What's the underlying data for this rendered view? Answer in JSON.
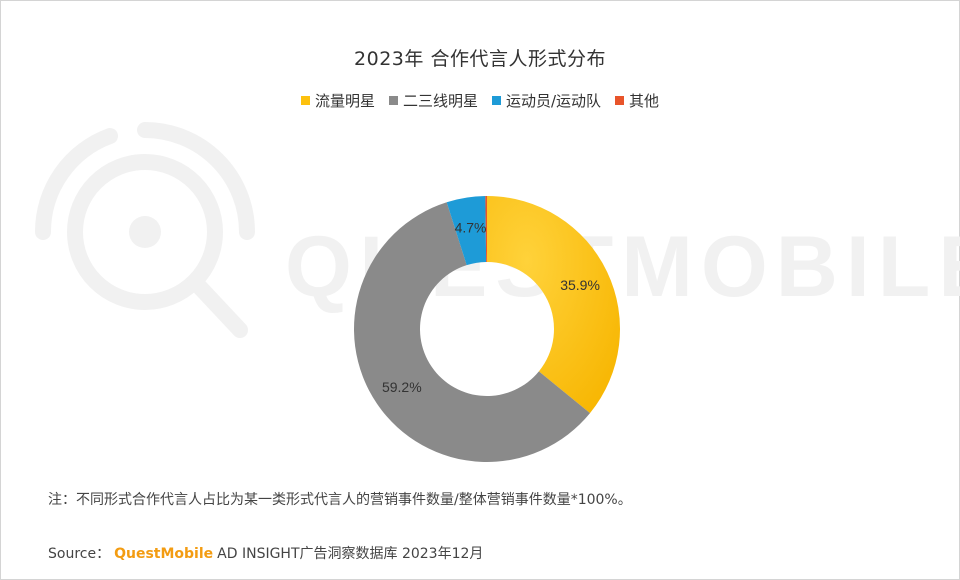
{
  "chart_data": {
    "type": "pie",
    "variant": "donut",
    "title": "2023年 合作代言人形式分布",
    "categories": [
      "流量明星",
      "二三线明星",
      "运动员/运动队",
      "其他"
    ],
    "values": [
      35.9,
      59.2,
      4.7,
      0.2
    ],
    "labels": [
      "35.9%",
      "59.2%",
      "4.7%",
      ""
    ],
    "colors": [
      "#FDC10E",
      "#8A8A8A",
      "#1E9BD7",
      "#E8542A"
    ],
    "legend_position": "top"
  },
  "note": "注：不同形式合作代言人占比为某一类形式代言人的营销事件数量/整体营销事件数量*100%。",
  "source": {
    "prefix": "Source：",
    "brand": "QuestMobile",
    "rest": "AD INSIGHT广告洞察数据库 2023年12月"
  },
  "watermark": {
    "text": "QUESTMOBILE",
    "icon": "questmobile-logo-icon"
  }
}
